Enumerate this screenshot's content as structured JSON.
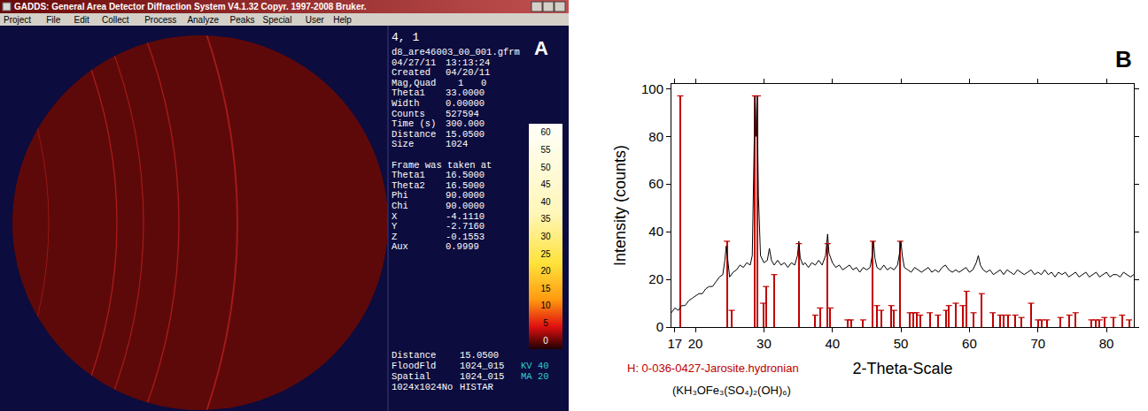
{
  "screenshot": {
    "label": "A",
    "window_title": "GADDS: General Area Detector Diffraction System V4.1.32 Copyr. 1997-2008 Bruker.",
    "menu": [
      "Project",
      "File",
      "Edit",
      "Collect",
      "Process",
      "Analyze",
      "Peaks",
      "Special",
      "User",
      "Help"
    ],
    "frame_id": "4, 1",
    "file_name": "d8_are46003_00_001.gfrm",
    "info": [
      [
        "04/27/11",
        "13:13:24"
      ],
      [
        "Created",
        "04/20/11"
      ],
      [
        "Mag,Quad",
        "1",
        "0"
      ],
      [
        "Theta1",
        "33.0000"
      ],
      [
        "Width",
        "0.00000"
      ],
      [
        "Counts",
        "527594"
      ],
      [
        "Time (s)",
        "300.000"
      ],
      [
        "Distance",
        "15.0500"
      ],
      [
        "Size",
        "1024"
      ]
    ],
    "frame_heading": "Frame was taken at",
    "frame_info": [
      [
        "Theta1",
        "16.5000"
      ],
      [
        "Theta2",
        "16.5000"
      ],
      [
        "Phi",
        "90.0000"
      ],
      [
        "Chi",
        "90.0000"
      ],
      [
        "X",
        "-4.1110"
      ],
      [
        "Y",
        "-2.7160"
      ],
      [
        "Z",
        "-0.1553"
      ],
      [
        "Aux",
        "0.9999"
      ]
    ],
    "color_scale": [
      60,
      55,
      50,
      45,
      40,
      35,
      30,
      25,
      20,
      15,
      10,
      5,
      0
    ],
    "footer": [
      [
        "Distance",
        "15.0500",
        ""
      ],
      [
        "FloodFld",
        "1024_015",
        "KV 40"
      ],
      [
        "Spatial",
        "1024_015",
        "MA 20"
      ],
      [
        "1024x1024No",
        "HISTAR",
        ""
      ]
    ]
  },
  "chart_data": {
    "type": "line",
    "label": "B",
    "x_label": "2-Theta-Scale",
    "y_label": "Intensity (counts)",
    "xlim": [
      16.5,
      84
    ],
    "xticks": [
      17,
      20,
      30,
      40,
      50,
      60,
      70,
      80
    ],
    "ylim": [
      0,
      102
    ],
    "yticks": [
      0,
      20,
      40,
      60,
      80,
      100
    ],
    "grid": false,
    "annotations": [
      "(KH₃OFe₃(SO₄)₂(OH)₆)"
    ],
    "series": [
      {
        "type": "line",
        "color": "#000000",
        "x": [
          16.5,
          17,
          17.5,
          18,
          18.5,
          19,
          19.5,
          20,
          20.5,
          21,
          21.5,
          22,
          22.5,
          23,
          23.5,
          24,
          24.3,
          24.5,
          24.7,
          25,
          25.5,
          26,
          26.5,
          27,
          27.5,
          28,
          28.3,
          28.5,
          28.7,
          28.85,
          29.0,
          29.2,
          29.5,
          30,
          30.5,
          30.8,
          31.1,
          31.5,
          32,
          32.5,
          33,
          33.5,
          34,
          34.5,
          34.9,
          35.1,
          35.3,
          35.7,
          36,
          36.5,
          37,
          37.5,
          38,
          38.5,
          39,
          39.3,
          39.5,
          40,
          40.5,
          41,
          41.5,
          42,
          42.5,
          43,
          43.5,
          44,
          44.5,
          45,
          45.5,
          45.8,
          46,
          46.2,
          46.5,
          47,
          47.5,
          48,
          48.5,
          49,
          49.5,
          49.8,
          50,
          50.2,
          50.5,
          51,
          51.5,
          52,
          52.5,
          53,
          53.5,
          54,
          54.5,
          55,
          55.5,
          56,
          56.5,
          57,
          57.5,
          58,
          58.5,
          59,
          59.5,
          60,
          60.5,
          61,
          61.3,
          61.6,
          62,
          62.5,
          63,
          63.5,
          64,
          64.5,
          65,
          65.5,
          66,
          66.5,
          67,
          67.5,
          68,
          68.5,
          69,
          69.5,
          70,
          70.5,
          71,
          71.5,
          72,
          72.5,
          73,
          73.5,
          74,
          74.5,
          75,
          75.5,
          76,
          76.5,
          77,
          77.5,
          78,
          78.5,
          79,
          79.5,
          80,
          80.5,
          81,
          81.5,
          82,
          82.5,
          83,
          83.5,
          84
        ],
        "values": [
          6,
          8,
          7,
          9,
          9,
          11,
          12,
          13,
          14,
          14,
          16,
          17,
          17,
          19,
          21,
          22,
          28,
          34,
          28,
          21,
          23,
          24,
          26,
          25,
          27,
          26,
          30,
          60,
          97,
          80,
          97,
          55,
          30,
          27,
          28,
          33,
          28,
          26,
          28,
          26,
          27,
          25,
          27,
          26,
          30,
          36,
          29,
          26,
          27,
          25,
          27,
          26,
          28,
          26,
          30,
          39,
          31,
          27,
          25,
          26,
          24,
          25,
          26,
          24,
          25,
          23,
          25,
          24,
          25,
          30,
          36,
          29,
          25,
          24,
          26,
          24,
          25,
          24,
          26,
          31,
          36,
          30,
          25,
          24,
          23,
          25,
          24,
          23,
          24,
          25,
          23,
          24,
          23,
          25,
          26,
          24,
          23,
          24,
          23,
          24,
          25,
          23,
          24,
          27,
          30,
          26,
          24,
          23,
          24,
          22,
          23,
          24,
          22,
          24,
          23,
          22,
          24,
          23,
          22,
          23,
          24,
          22,
          23,
          22,
          24,
          22,
          23,
          21,
          23,
          22,
          23,
          21,
          22,
          23,
          21,
          22,
          23,
          21,
          22,
          23,
          21,
          22,
          23,
          21,
          22,
          22,
          21,
          23,
          22,
          21,
          22
        ]
      },
      {
        "name": "H: 0-036-0427-Jarosite.hydronian",
        "type": "bar",
        "color": "#c00000",
        "x": [
          17.8,
          24.6,
          25.3,
          28.7,
          29.1,
          29.9,
          30.3,
          31.5,
          35.1,
          37.5,
          38.2,
          39.3,
          39.7,
          42.2,
          42.7,
          44.5,
          45.9,
          46.5,
          47.1,
          48.6,
          49.0,
          49.9,
          51.3,
          51.8,
          52.3,
          52.8,
          54.2,
          55.4,
          56.6,
          57.0,
          58.0,
          59.0,
          59.6,
          60.6,
          61.8,
          63.4,
          64.5,
          65.0,
          65.6,
          66.7,
          67.6,
          69.0,
          70.0,
          70.6,
          71.3,
          73.3,
          74.6,
          75.5,
          77.8,
          78.4,
          79.0,
          79.7,
          81.0,
          82.3,
          83.3
        ],
        "values": [
          97,
          36,
          7,
          97,
          97,
          10,
          17,
          22,
          35,
          5,
          8,
          35,
          8,
          3,
          3,
          3,
          36,
          9,
          7,
          9,
          7,
          36,
          6,
          6,
          6,
          5,
          6,
          5,
          7,
          9,
          10,
          9,
          15,
          6,
          14,
          6,
          5,
          5,
          5,
          5,
          4,
          10,
          3,
          3,
          3,
          4,
          5,
          6,
          3,
          3,
          3,
          4,
          4,
          5,
          3
        ]
      }
    ]
  }
}
